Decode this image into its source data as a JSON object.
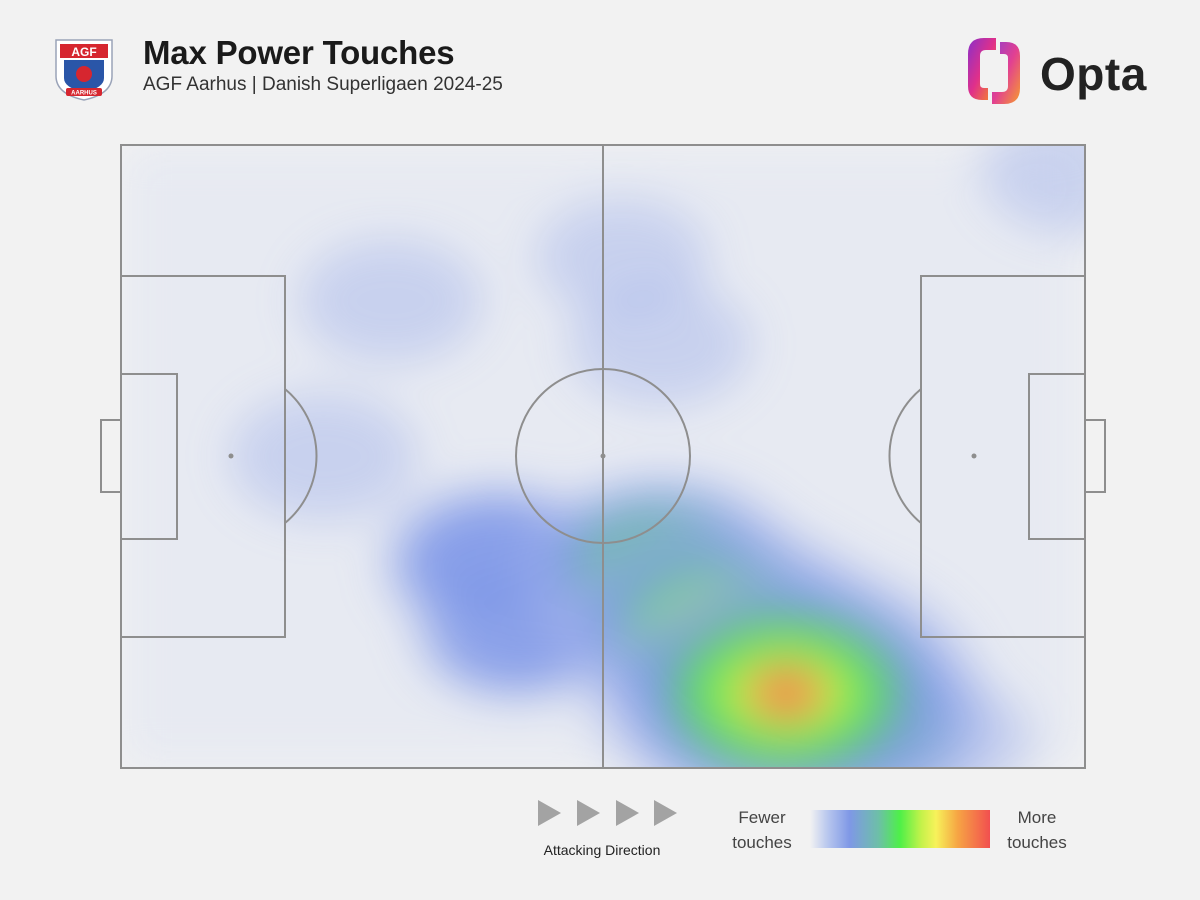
{
  "header": {
    "title": "Max Power Touches",
    "subtitle": "AGF Aarhus | Danish Superligaen 2024-25",
    "crest_text": "AGF",
    "crest_subtext": "AARHUS",
    "brand": "Opta"
  },
  "legend": {
    "low_line1": "Fewer",
    "low_line2": "touches",
    "high_line1": "More",
    "high_line2": "touches",
    "colors": [
      "#b7c6ee",
      "#7f98e6",
      "#6dbfa8",
      "#4ef048",
      "#c6f24a",
      "#f7f25a",
      "#f6a544",
      "#f24f4f"
    ]
  },
  "attacking_direction": "Attacking Direction",
  "chart_data": {
    "type": "heatmap",
    "x_range": [
      0,
      100
    ],
    "y_range": [
      0,
      100
    ],
    "description_axes": "x = pitch length in attacking direction, y = pitch width (0 = top touchline)",
    "points": [
      {
        "x": 69,
        "y": 88,
        "v": 1.0
      },
      {
        "x": 62,
        "y": 78,
        "v": 0.75
      },
      {
        "x": 56,
        "y": 68,
        "v": 0.55
      },
      {
        "x": 77,
        "y": 93,
        "v": 0.5
      },
      {
        "x": 39,
        "y": 67,
        "v": 0.38
      },
      {
        "x": 41,
        "y": 78,
        "v": 0.28
      },
      {
        "x": 48,
        "y": 75,
        "v": 0.22
      },
      {
        "x": 85,
        "y": 96,
        "v": 0.2
      },
      {
        "x": 21,
        "y": 50,
        "v": 0.2
      },
      {
        "x": 28,
        "y": 25,
        "v": 0.18
      },
      {
        "x": 56,
        "y": 32,
        "v": 0.18
      },
      {
        "x": 52,
        "y": 18,
        "v": 0.14
      },
      {
        "x": 99,
        "y": 4,
        "v": 0.2
      },
      {
        "x": 11,
        "y": 90,
        "v": 0.12
      },
      {
        "x": 8,
        "y": 45,
        "v": 0.12
      },
      {
        "x": 34,
        "y": 45,
        "v": 0.1
      },
      {
        "x": 63,
        "y": 10,
        "v": 0.1
      },
      {
        "x": 88,
        "y": 8,
        "v": 0.1
      },
      {
        "x": 90,
        "y": 60,
        "v": 0.08
      },
      {
        "x": 14,
        "y": 10,
        "v": 0.08
      }
    ]
  }
}
